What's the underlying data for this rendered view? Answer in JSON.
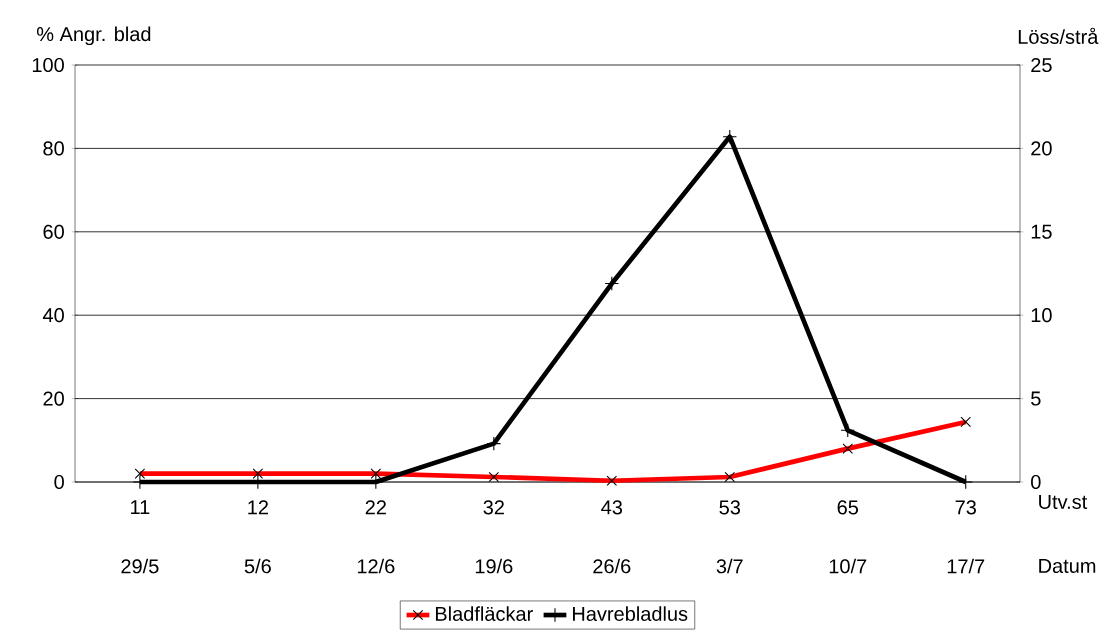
{
  "chart_data": {
    "type": "line",
    "categories": [
      "11",
      "12",
      "22",
      "32",
      "43",
      "53",
      "65",
      "73"
    ],
    "xlabel": "Utv.st",
    "ylabel": "% Angr. blad",
    "y2label": "Löss/strå",
    "ylim": [
      0,
      100
    ],
    "yticks": [
      0,
      20,
      40,
      60,
      80,
      100
    ],
    "y2lim": [
      0,
      25
    ],
    "y2ticks": [
      0,
      5,
      10,
      15,
      20,
      25
    ],
    "grid": "y",
    "legend": "bottom",
    "series": [
      {
        "name": "Bladfläckar",
        "color": "#ff0000",
        "marker": "cross",
        "values": [
          2,
          2,
          2,
          1.2,
          0.3,
          1.2,
          8,
          14.4
        ]
      },
      {
        "name": "Havrebladlus",
        "color": "#000000",
        "marker": "plus",
        "axis": "y2",
        "values": [
          0,
          0,
          0,
          2.3,
          11.9,
          20.7,
          3.1,
          0
        ]
      }
    ],
    "annotations": [
      "Datum",
      "29/5",
      "5/6",
      "12/6",
      "19/6",
      "26/6",
      "3/7",
      "10/7",
      "17/7"
    ]
  }
}
